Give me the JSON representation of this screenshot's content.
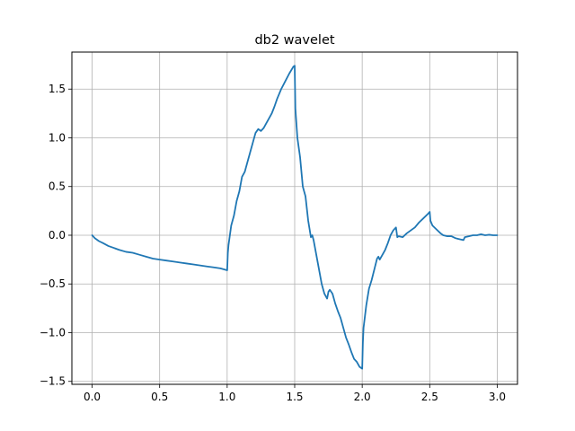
{
  "chart_data": {
    "type": "line",
    "title": "db2 wavelet",
    "xlabel": "",
    "ylabel": "",
    "xlim": [
      -0.15,
      3.15
    ],
    "ylim": [
      -1.53,
      1.88
    ],
    "xticks": [
      0.0,
      0.5,
      1.0,
      1.5,
      2.0,
      2.5,
      3.0
    ],
    "xtick_labels": [
      "0.0",
      "0.5",
      "1.0",
      "1.5",
      "2.0",
      "2.5",
      "3.0"
    ],
    "yticks": [
      -1.5,
      -1.0,
      -0.5,
      0.0,
      0.5,
      1.0,
      1.5
    ],
    "ytick_labels": [
      "−1.5",
      "−1.0",
      "−0.5",
      "0.0",
      "0.5",
      "1.0",
      "1.5"
    ],
    "grid": true,
    "line_color": "#1f77b4",
    "series": [
      {
        "x": [
          0.0,
          0.02,
          0.05,
          0.08,
          0.12,
          0.16,
          0.2,
          0.25,
          0.3,
          0.35,
          0.4,
          0.45,
          0.5,
          0.55,
          0.6,
          0.65,
          0.7,
          0.75,
          0.8,
          0.85,
          0.9,
          0.95,
          1.0,
          1.005,
          1.01,
          1.03,
          1.05,
          1.07,
          1.09,
          1.11,
          1.13,
          1.15,
          1.17,
          1.19,
          1.21,
          1.23,
          1.25,
          1.27,
          1.29,
          1.31,
          1.33,
          1.35,
          1.37,
          1.4,
          1.43,
          1.46,
          1.49,
          1.5,
          1.505,
          1.52,
          1.54,
          1.56,
          1.58,
          1.6,
          1.62,
          1.63,
          1.64,
          1.66,
          1.68,
          1.7,
          1.72,
          1.74,
          1.75,
          1.76,
          1.78,
          1.8,
          1.82,
          1.84,
          1.86,
          1.88,
          1.9,
          1.92,
          1.94,
          1.96,
          1.98,
          2.0,
          2.005,
          2.01,
          2.03,
          2.05,
          2.07,
          2.09,
          2.11,
          2.12,
          2.13,
          2.15,
          2.17,
          2.19,
          2.21,
          2.23,
          2.25,
          2.26,
          2.27,
          2.3,
          2.33,
          2.36,
          2.39,
          2.42,
          2.45,
          2.48,
          2.5,
          2.505,
          2.52,
          2.55,
          2.58,
          2.6,
          2.63,
          2.66,
          2.69,
          2.72,
          2.75,
          2.76,
          2.79,
          2.82,
          2.85,
          2.88,
          2.91,
          2.94,
          2.97,
          3.0
        ],
        "y": [
          0.0,
          -0.03,
          -0.06,
          -0.08,
          -0.11,
          -0.13,
          -0.15,
          -0.17,
          -0.18,
          -0.2,
          -0.22,
          -0.24,
          -0.25,
          -0.26,
          -0.27,
          -0.28,
          -0.29,
          -0.3,
          -0.31,
          -0.32,
          -0.33,
          -0.34,
          -0.36,
          -0.18,
          -0.1,
          0.1,
          0.2,
          0.35,
          0.45,
          0.6,
          0.65,
          0.75,
          0.85,
          0.95,
          1.05,
          1.09,
          1.07,
          1.1,
          1.15,
          1.2,
          1.25,
          1.32,
          1.4,
          1.5,
          1.58,
          1.66,
          1.73,
          1.74,
          1.3,
          1.0,
          0.8,
          0.5,
          0.4,
          0.15,
          -0.02,
          0.0,
          -0.05,
          -0.2,
          -0.35,
          -0.5,
          -0.6,
          -0.65,
          -0.58,
          -0.56,
          -0.6,
          -0.7,
          -0.78,
          -0.85,
          -0.95,
          -1.05,
          -1.12,
          -1.2,
          -1.27,
          -1.3,
          -1.35,
          -1.37,
          -1.1,
          -0.95,
          -0.72,
          -0.55,
          -0.46,
          -0.35,
          -0.24,
          -0.22,
          -0.25,
          -0.2,
          -0.15,
          -0.08,
          0.0,
          0.05,
          0.08,
          -0.02,
          -0.01,
          -0.02,
          0.02,
          0.05,
          0.08,
          0.13,
          0.17,
          0.21,
          0.24,
          0.15,
          0.1,
          0.06,
          0.02,
          0.0,
          -0.01,
          -0.01,
          -0.03,
          -0.04,
          -0.05,
          -0.02,
          -0.01,
          0.0,
          0.0,
          0.01,
          0.0,
          0.005,
          0.0,
          0.0
        ]
      }
    ]
  }
}
